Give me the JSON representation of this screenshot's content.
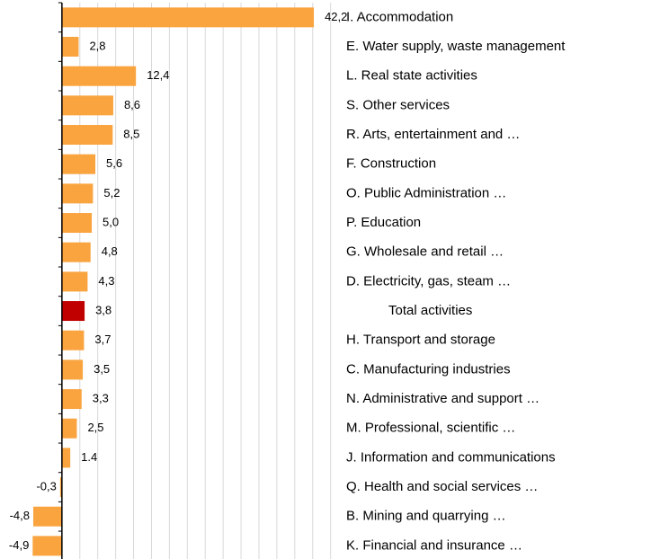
{
  "chart_data": {
    "type": "barh",
    "categories": [
      "I. Accommodation",
      "E. Water supply, waste management",
      "L. Real state activities",
      "S. Other services",
      "R. Arts, entertainment and …",
      "F. Construction",
      "O. Public Administration …",
      "P. Education",
      "G. Wholesale and retail …",
      "D. Electricity, gas, steam …",
      "Total activities",
      "H. Transport and storage",
      "C. Manufacturing industries",
      "N. Administrative and support …",
      "M. Professional, scientific …",
      "J. Information and communications",
      "Q. Health and social services …",
      "B. Mining and quarrying …",
      "K. Financial and insurance …"
    ],
    "values": [
      42.2,
      2.8,
      12.4,
      8.6,
      8.5,
      5.6,
      5.2,
      5.0,
      4.8,
      4.3,
      3.8,
      3.7,
      3.5,
      3.3,
      2.5,
      1.4,
      -0.3,
      -4.8,
      -4.9
    ],
    "value_labels": [
      "42,2",
      "2,8",
      "12,4",
      "8,6",
      "8,5",
      "5,6",
      "5,2",
      "5,0",
      "4,8",
      "4,3",
      "3,8",
      "3,7",
      "3,5",
      "3,3",
      "2,5",
      "1.4",
      "-0,3",
      "-4,8",
      "-4,9"
    ],
    "colors": [
      "#f9a43f",
      "#f9a43f",
      "#f9a43f",
      "#f9a43f",
      "#f9a43f",
      "#f9a43f",
      "#f9a43f",
      "#f9a43f",
      "#f9a43f",
      "#f9a43f",
      "#c00000",
      "#f9a43f",
      "#f9a43f",
      "#f9a43f",
      "#f9a43f",
      "#f9a43f",
      "#f9a43f",
      "#f9a43f",
      "#f9a43f"
    ],
    "xlim": [
      -5.4,
      49
    ],
    "xticks": [
      0,
      3,
      6,
      9,
      12,
      15,
      18,
      21,
      24,
      27,
      30,
      33,
      36,
      39,
      42,
      45
    ],
    "grid": true
  }
}
